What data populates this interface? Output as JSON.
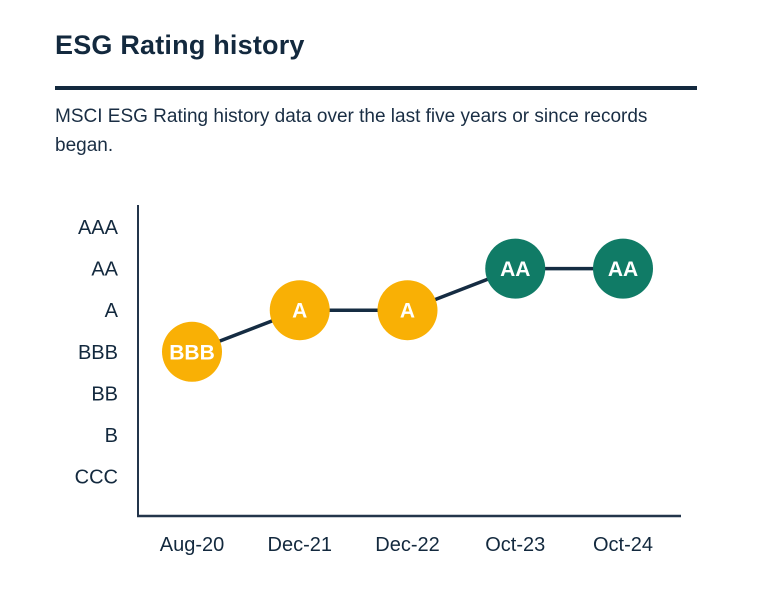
{
  "page": {
    "title": "ESG Rating history",
    "subtitle": "MSCI ESG Rating history data over the last five years or since records began."
  },
  "colors": {
    "navy_text": "#13293E",
    "axis": "#23354B",
    "line": "#152C42",
    "yellow": "#F9B005",
    "teal": "#107B66",
    "point_label": "#FFFFFF",
    "background": "#FFFFFF"
  },
  "chart_data": {
    "type": "line",
    "title": "ESG Rating history",
    "xlabel": "",
    "ylabel": "",
    "grid": false,
    "legend": false,
    "y_axis_labels": [
      "AAA",
      "AA",
      "A",
      "BBB",
      "BB",
      "B",
      "CCC"
    ],
    "categories": [
      "Aug-20",
      "Dec-21",
      "Dec-22",
      "Oct-23",
      "Oct-24"
    ],
    "series": [
      {
        "name": "MSCI ESG Rating",
        "points": [
          {
            "x": "Aug-20",
            "rating": "BBB",
            "color": "#F9B005"
          },
          {
            "x": "Dec-21",
            "rating": "A",
            "color": "#F9B005"
          },
          {
            "x": "Dec-22",
            "rating": "A",
            "color": "#F9B005"
          },
          {
            "x": "Oct-23",
            "rating": "AA",
            "color": "#107B66"
          },
          {
            "x": "Oct-24",
            "rating": "AA",
            "color": "#107B66"
          }
        ]
      }
    ]
  }
}
